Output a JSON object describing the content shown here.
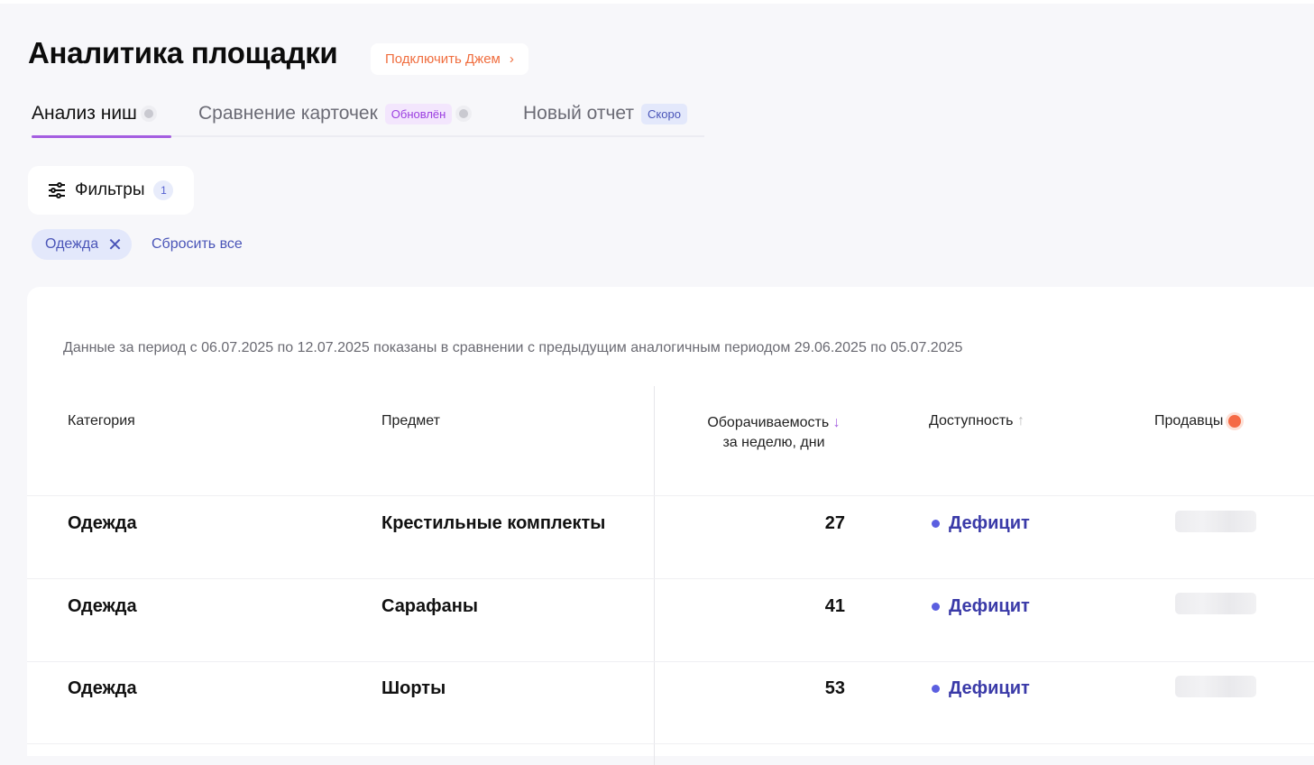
{
  "header": {
    "title": "Аналитика площадки",
    "connect_label": "Подключить Джем"
  },
  "tabs": [
    {
      "label": "Анализ ниш",
      "active": true
    },
    {
      "label": "Сравнение карточек",
      "badge": "Обновлён"
    },
    {
      "label": "Новый отчет",
      "badge": "Скоро"
    }
  ],
  "filters": {
    "label": "Фильтры",
    "count": "1",
    "chips": [
      {
        "label": "Одежда"
      }
    ],
    "reset_label": "Сбросить все"
  },
  "table": {
    "period_note": "Данные за период с 06.07.2025 по 12.07.2025 показаны в сравнении с предыдущим аналогичным периодом 29.06.2025 по 05.07.2025",
    "columns": {
      "category": "Категория",
      "subject": "Предмет",
      "turnover_line1": "Оборачиваемость",
      "turnover_line2": "за неделю, дни",
      "availability": "Доступность",
      "sellers": "Продавцы"
    },
    "rows": [
      {
        "category": "Одежда",
        "subject": "Крестильные комплекты",
        "turnover": "27",
        "availability": "Дефицит"
      },
      {
        "category": "Одежда",
        "subject": "Сарафаны",
        "turnover": "41",
        "availability": "Дефицит"
      },
      {
        "category": "Одежда",
        "subject": "Шорты",
        "turnover": "53",
        "availability": "Дефицит"
      }
    ]
  },
  "colors": {
    "accent": "#a45ee0",
    "link": "#4a55b8",
    "connect": "#f06e3f",
    "deficit": "#3a3aa8"
  }
}
